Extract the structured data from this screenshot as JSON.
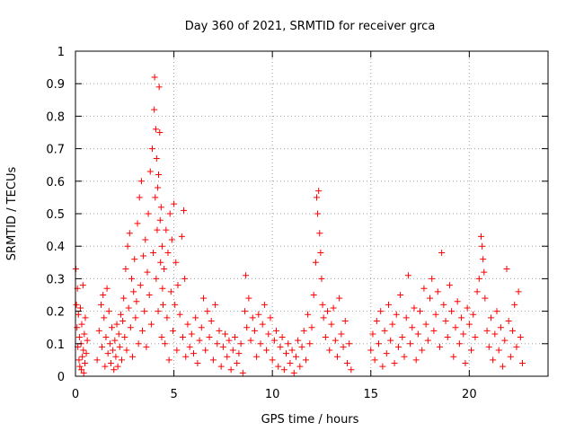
{
  "chart_data": {
    "type": "scatter",
    "title": "Day 360 of 2021, SRMTID for receiver grca",
    "xlabel": "GPS time / hours",
    "ylabel": "SRMTID / TECUs",
    "xlim": [
      0,
      24
    ],
    "ylim": [
      0,
      1
    ],
    "xticks": [
      0,
      5,
      10,
      15,
      20
    ],
    "xtick_labels": [
      "0",
      "5",
      "10",
      "15",
      "20"
    ],
    "yticks": [
      0,
      0.1,
      0.2,
      0.3,
      0.4,
      0.5,
      0.6,
      0.7,
      0.8,
      0.9,
      1
    ],
    "ytick_labels": [
      "0",
      "0.1",
      "0.2",
      "0.3",
      "0.4",
      "0.5",
      "0.6",
      "0.7",
      "0.8",
      "0.9",
      "1"
    ],
    "grid": true,
    "marker": "+",
    "color": "#ff0000",
    "series": [
      {
        "name": "SRMTID",
        "points": [
          [
            0.02,
            0.33
          ],
          [
            0.05,
            0.22
          ],
          [
            0.08,
            0.15
          ],
          [
            0.1,
            0.27
          ],
          [
            0.12,
            0.09
          ],
          [
            0.15,
            0.19
          ],
          [
            0.18,
            0.05
          ],
          [
            0.2,
            0.12
          ],
          [
            0.22,
            0.03
          ],
          [
            0.25,
            0.21
          ],
          [
            0.28,
            0.1
          ],
          [
            0.3,
            0.02
          ],
          [
            0.32,
            0.16
          ],
          [
            0.35,
            0.06
          ],
          [
            0.38,
            0.28
          ],
          [
            0.4,
            0.08
          ],
          [
            0.42,
            0.01
          ],
          [
            0.45,
            0.13
          ],
          [
            0.48,
            0.04
          ],
          [
            0.5,
            0.18
          ],
          [
            0.55,
            0.07
          ],
          [
            0.6,
            0.11
          ],
          [
            1.1,
            0.05
          ],
          [
            1.2,
            0.14
          ],
          [
            1.3,
            0.22
          ],
          [
            1.35,
            0.09
          ],
          [
            1.4,
            0.25
          ],
          [
            1.45,
            0.18
          ],
          [
            1.5,
            0.03
          ],
          [
            1.55,
            0.12
          ],
          [
            1.6,
            0.27
          ],
          [
            1.65,
            0.07
          ],
          [
            1.7,
            0.2
          ],
          [
            1.75,
            0.1
          ],
          [
            1.8,
            0.04
          ],
          [
            1.85,
            0.15
          ],
          [
            1.9,
            0.08
          ],
          [
            1.95,
            0.02
          ],
          [
            2.0,
            0.11
          ],
          [
            2.05,
            0.06
          ],
          [
            2.1,
            0.16
          ],
          [
            2.15,
            0.03
          ],
          [
            2.2,
            0.13
          ],
          [
            2.25,
            0.09
          ],
          [
            2.3,
            0.19
          ],
          [
            2.35,
            0.05
          ],
          [
            2.4,
            0.17
          ],
          [
            2.45,
            0.24
          ],
          [
            2.5,
            0.12
          ],
          [
            2.55,
            0.33
          ],
          [
            2.6,
            0.08
          ],
          [
            2.65,
            0.4
          ],
          [
            2.7,
            0.21
          ],
          [
            2.75,
            0.44
          ],
          [
            2.8,
            0.15
          ],
          [
            2.85,
            0.3
          ],
          [
            2.9,
            0.06
          ],
          [
            2.95,
            0.26
          ],
          [
            3.0,
            0.36
          ],
          [
            3.05,
            0.18
          ],
          [
            3.1,
            0.23
          ],
          [
            3.15,
            0.47
          ],
          [
            3.2,
            0.1
          ],
          [
            3.25,
            0.55
          ],
          [
            3.3,
            0.28
          ],
          [
            3.35,
            0.6
          ],
          [
            3.4,
            0.14
          ],
          [
            3.45,
            0.37
          ],
          [
            3.5,
            0.2
          ],
          [
            3.55,
            0.42
          ],
          [
            3.6,
            0.09
          ],
          [
            3.65,
            0.32
          ],
          [
            3.7,
            0.5
          ],
          [
            3.75,
            0.25
          ],
          [
            3.8,
            0.63
          ],
          [
            3.85,
            0.16
          ],
          [
            3.9,
            0.7
          ],
          [
            3.95,
            0.38
          ],
          [
            4.0,
            0.82
          ],
          [
            4.02,
            0.92
          ],
          [
            4.05,
            0.55
          ],
          [
            4.08,
            0.76
          ],
          [
            4.1,
            0.3
          ],
          [
            4.12,
            0.67
          ],
          [
            4.15,
            0.45
          ],
          [
            4.18,
            0.58
          ],
          [
            4.2,
            0.2
          ],
          [
            4.22,
            0.62
          ],
          [
            4.25,
            0.89
          ],
          [
            4.28,
            0.75
          ],
          [
            4.3,
            0.48
          ],
          [
            4.32,
            0.35
          ],
          [
            4.35,
            0.52
          ],
          [
            4.38,
            0.12
          ],
          [
            4.4,
            0.4
          ],
          [
            4.42,
            0.27
          ],
          [
            4.45,
            0.22
          ],
          [
            4.5,
            0.33
          ],
          [
            4.55,
            0.1
          ],
          [
            4.6,
            0.45
          ],
          [
            4.65,
            0.18
          ],
          [
            4.7,
            0.38
          ],
          [
            4.75,
            0.05
          ],
          [
            4.8,
            0.5
          ],
          [
            4.85,
            0.26
          ],
          [
            4.9,
            0.42
          ],
          [
            4.95,
            0.14
          ],
          [
            5.0,
            0.53
          ],
          [
            5.05,
            0.22
          ],
          [
            5.1,
            0.35
          ],
          [
            5.15,
            0.08
          ],
          [
            5.2,
            0.28
          ],
          [
            5.3,
            0.19
          ],
          [
            5.4,
            0.43
          ],
          [
            5.45,
            0.12
          ],
          [
            5.5,
            0.51
          ],
          [
            5.55,
            0.3
          ],
          [
            5.6,
            0.06
          ],
          [
            5.7,
            0.16
          ],
          [
            5.8,
            0.09
          ],
          [
            5.9,
            0.13
          ],
          [
            6.0,
            0.07
          ],
          [
            6.1,
            0.18
          ],
          [
            6.2,
            0.04
          ],
          [
            6.3,
            0.11
          ],
          [
            6.4,
            0.15
          ],
          [
            6.5,
            0.24
          ],
          [
            6.6,
            0.08
          ],
          [
            6.7,
            0.2
          ],
          [
            6.8,
            0.12
          ],
          [
            6.9,
            0.17
          ],
          [
            7.0,
            0.05
          ],
          [
            7.1,
            0.22
          ],
          [
            7.2,
            0.1
          ],
          [
            7.3,
            0.14
          ],
          [
            7.4,
            0.03
          ],
          [
            7.5,
            0.09
          ],
          [
            7.6,
            0.13
          ],
          [
            7.7,
            0.06
          ],
          [
            7.8,
            0.11
          ],
          [
            7.9,
            0.02
          ],
          [
            8.0,
            0.08
          ],
          [
            8.1,
            0.12
          ],
          [
            8.2,
            0.04
          ],
          [
            8.3,
            0.07
          ],
          [
            8.4,
            0.1
          ],
          [
            8.5,
            0.01
          ],
          [
            8.6,
            0.2
          ],
          [
            8.65,
            0.31
          ],
          [
            8.7,
            0.15
          ],
          [
            8.8,
            0.24
          ],
          [
            8.9,
            0.11
          ],
          [
            9.0,
            0.18
          ],
          [
            9.1,
            0.14
          ],
          [
            9.2,
            0.06
          ],
          [
            9.3,
            0.19
          ],
          [
            9.4,
            0.1
          ],
          [
            9.5,
            0.16
          ],
          [
            9.6,
            0.22
          ],
          [
            9.7,
            0.08
          ],
          [
            9.8,
            0.13
          ],
          [
            9.9,
            0.18
          ],
          [
            10.0,
            0.05
          ],
          [
            10.1,
            0.11
          ],
          [
            10.2,
            0.14
          ],
          [
            10.3,
            0.03
          ],
          [
            10.4,
            0.09
          ],
          [
            10.5,
            0.12
          ],
          [
            10.6,
            0.02
          ],
          [
            10.7,
            0.07
          ],
          [
            10.8,
            0.1
          ],
          [
            10.9,
            0.04
          ],
          [
            11.0,
            0.08
          ],
          [
            11.1,
            0.01
          ],
          [
            11.2,
            0.06
          ],
          [
            11.3,
            0.11
          ],
          [
            11.4,
            0.03
          ],
          [
            11.5,
            0.09
          ],
          [
            11.6,
            0.14
          ],
          [
            11.7,
            0.05
          ],
          [
            11.8,
            0.19
          ],
          [
            11.9,
            0.1
          ],
          [
            12.0,
            0.15
          ],
          [
            12.1,
            0.25
          ],
          [
            12.2,
            0.35
          ],
          [
            12.25,
            0.55
          ],
          [
            12.3,
            0.5
          ],
          [
            12.35,
            0.57
          ],
          [
            12.4,
            0.44
          ],
          [
            12.45,
            0.38
          ],
          [
            12.5,
            0.3
          ],
          [
            12.55,
            0.22
          ],
          [
            12.6,
            0.18
          ],
          [
            12.7,
            0.12
          ],
          [
            12.8,
            0.2
          ],
          [
            12.9,
            0.08
          ],
          [
            13.0,
            0.16
          ],
          [
            13.1,
            0.21
          ],
          [
            13.2,
            0.11
          ],
          [
            13.3,
            0.06
          ],
          [
            13.4,
            0.24
          ],
          [
            13.5,
            0.13
          ],
          [
            13.6,
            0.09
          ],
          [
            13.7,
            0.17
          ],
          [
            13.8,
            0.04
          ],
          [
            13.9,
            0.1
          ],
          [
            14.0,
            0.02
          ],
          [
            15.0,
            0.08
          ],
          [
            15.1,
            0.13
          ],
          [
            15.2,
            0.05
          ],
          [
            15.3,
            0.17
          ],
          [
            15.4,
            0.1
          ],
          [
            15.5,
            0.2
          ],
          [
            15.6,
            0.03
          ],
          [
            15.7,
            0.14
          ],
          [
            15.8,
            0.07
          ],
          [
            15.9,
            0.22
          ],
          [
            16.0,
            0.11
          ],
          [
            16.1,
            0.16
          ],
          [
            16.2,
            0.04
          ],
          [
            16.3,
            0.19
          ],
          [
            16.4,
            0.09
          ],
          [
            16.5,
            0.25
          ],
          [
            16.6,
            0.12
          ],
          [
            16.7,
            0.06
          ],
          [
            16.8,
            0.18
          ],
          [
            16.9,
            0.31
          ],
          [
            17.0,
            0.1
          ],
          [
            17.1,
            0.15
          ],
          [
            17.2,
            0.21
          ],
          [
            17.3,
            0.05
          ],
          [
            17.4,
            0.13
          ],
          [
            17.5,
            0.2
          ],
          [
            17.6,
            0.08
          ],
          [
            17.7,
            0.27
          ],
          [
            17.8,
            0.16
          ],
          [
            17.9,
            0.11
          ],
          [
            18.0,
            0.24
          ],
          [
            18.1,
            0.3
          ],
          [
            18.2,
            0.14
          ],
          [
            18.3,
            0.19
          ],
          [
            18.4,
            0.26
          ],
          [
            18.5,
            0.09
          ],
          [
            18.6,
            0.38
          ],
          [
            18.7,
            0.22
          ],
          [
            18.8,
            0.17
          ],
          [
            18.9,
            0.12
          ],
          [
            19.0,
            0.28
          ],
          [
            19.1,
            0.2
          ],
          [
            19.2,
            0.06
          ],
          [
            19.3,
            0.15
          ],
          [
            19.4,
            0.23
          ],
          [
            19.5,
            0.1
          ],
          [
            19.6,
            0.18
          ],
          [
            19.7,
            0.13
          ],
          [
            19.8,
            0.04
          ],
          [
            19.9,
            0.21
          ],
          [
            20.0,
            0.16
          ],
          [
            20.1,
            0.08
          ],
          [
            20.2,
            0.19
          ],
          [
            20.3,
            0.12
          ],
          [
            20.4,
            0.26
          ],
          [
            20.5,
            0.3
          ],
          [
            20.6,
            0.43
          ],
          [
            20.65,
            0.4
          ],
          [
            20.7,
            0.36
          ],
          [
            20.75,
            0.32
          ],
          [
            20.8,
            0.24
          ],
          [
            20.9,
            0.14
          ],
          [
            21.0,
            0.09
          ],
          [
            21.1,
            0.18
          ],
          [
            21.2,
            0.05
          ],
          [
            21.3,
            0.13
          ],
          [
            21.4,
            0.2
          ],
          [
            21.5,
            0.08
          ],
          [
            21.6,
            0.15
          ],
          [
            21.7,
            0.03
          ],
          [
            21.8,
            0.11
          ],
          [
            21.9,
            0.33
          ],
          [
            22.0,
            0.17
          ],
          [
            22.1,
            0.06
          ],
          [
            22.2,
            0.14
          ],
          [
            22.3,
            0.22
          ],
          [
            22.4,
            0.09
          ],
          [
            22.5,
            0.26
          ],
          [
            22.6,
            0.12
          ],
          [
            22.7,
            0.04
          ]
        ]
      }
    ]
  }
}
